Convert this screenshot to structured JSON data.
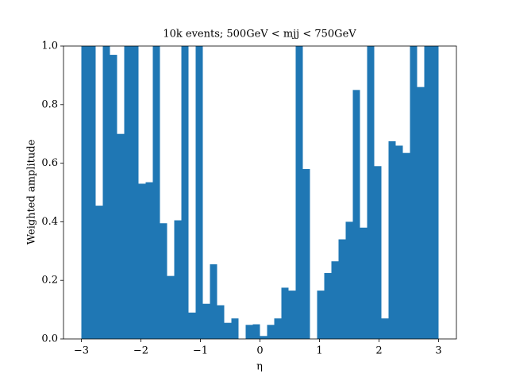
{
  "chart_data": {
    "type": "histogram",
    "title": "10k events; 500GeV < mjj < 750GeV",
    "x_label": "η",
    "y_label": "Weighted amplitude",
    "color": "#1f77b4",
    "bins": [
      -3,
      -2.88,
      -2.76,
      -2.64,
      -2.52,
      -2.4,
      -2.28,
      -2.16,
      -2.04,
      -1.92,
      -1.8,
      -1.68,
      -1.56,
      -1.44,
      -1.32,
      -1.2,
      -1.08,
      -0.96,
      -0.84,
      -0.72,
      -0.6,
      -0.48,
      -0.36,
      -0.24,
      -0.12,
      0,
      0.12,
      0.24,
      0.36,
      0.48,
      0.6,
      0.72,
      0.84,
      0.96,
      1.08,
      1.2,
      1.32,
      1.44,
      1.56,
      1.68,
      1.8,
      1.92,
      2.04,
      2.16,
      2.28,
      2.4,
      2.52,
      2.64,
      2.76,
      2.88,
      3
    ],
    "values": [
      1.0,
      1.0,
      0.455,
      1.0,
      0.97,
      0.7,
      1.0,
      1.0,
      0.53,
      0.535,
      1.0,
      0.395,
      0.215,
      0.405,
      1.0,
      0.09,
      1.0,
      0.12,
      0.255,
      0.115,
      0.055,
      0.07,
      0,
      0.048,
      0.05,
      0.01,
      0.048,
      0.07,
      0.175,
      0.165,
      1.0,
      0.58,
      0,
      0.165,
      0.225,
      0.265,
      0.34,
      0.4,
      0.85,
      0.38,
      1.0,
      0.59,
      0.07,
      0.675,
      0.66,
      0.635,
      1.0,
      0.86,
      1.0,
      1.0
    ],
    "xlim": [
      -3.3,
      3.3
    ],
    "ylim": [
      0,
      1
    ],
    "xticks": [
      {
        "value": -3,
        "label": "−3"
      },
      {
        "value": -2,
        "label": "−2"
      },
      {
        "value": -1,
        "label": "−1"
      },
      0,
      1,
      2,
      3
    ],
    "yticks": [
      {
        "value": 0,
        "label": "0.0"
      },
      {
        "value": 0.2,
        "label": "0.2"
      },
      {
        "value": 0.4,
        "label": "0.4"
      },
      {
        "value": 0.6,
        "label": "0.6"
      },
      {
        "value": 0.8,
        "label": "0.8"
      },
      {
        "value": 1,
        "label": "1.0"
      }
    ],
    "grid": false
  }
}
